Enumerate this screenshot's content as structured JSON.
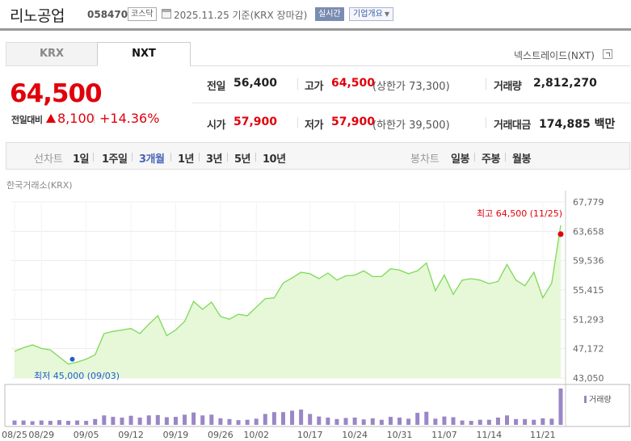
{
  "header": {
    "company_name": "리노공업",
    "stock_code": "058470",
    "market_badge": "코스닥",
    "date_text": "2025.11.25  기준(KRX 장마감)",
    "realtime_badge": "실시간",
    "company_info_button": "기업개요"
  },
  "tabs": {
    "krx": "KRX",
    "nxt": "NXT",
    "nxt_label": "넥스트레이드(NXT)"
  },
  "price": {
    "current": "64,500",
    "change_label": "전일대비",
    "change_value": "8,100",
    "change_pct": "+14.36%"
  },
  "quote": {
    "prev_label": "전일",
    "prev_value": "56,400",
    "high_label": "고가",
    "high_value": "64,500",
    "upper_limit": "(상한가 73,300)",
    "volume_label": "거래량",
    "volume_value": "2,812,270",
    "open_label": "시가",
    "open_value": "57,900",
    "low_label": "저가",
    "low_value": "57,900",
    "lower_limit": "(하한가 39,500)",
    "amount_label": "거래대금",
    "amount_value": "174,885 백만"
  },
  "period_bar": {
    "line_label": "선차트",
    "periods": [
      "1일",
      "1주일",
      "3개월",
      "1년",
      "3년",
      "5년",
      "10년"
    ],
    "active_period": "3개월",
    "candle_label": "봉차트",
    "candles": [
      "일봉",
      "주봉",
      "월봉"
    ]
  },
  "source_label": "한국거래소(KRX)",
  "colors": {
    "up": "#e0000b",
    "line": "#7ed957",
    "area": "#e6f8d8",
    "volume_bar": "#9b86c6",
    "active_tab": "#4a64b8",
    "low_marker": "#1e5ecf"
  },
  "chart_data": {
    "type": "line",
    "y_ticks": [
      "67,779",
      "63,658",
      "59,536",
      "55,415",
      "51,293",
      "47,172",
      "43,050"
    ],
    "ylim": [
      43050,
      67779
    ],
    "x_tick_labels": [
      "08/25",
      "08/29",
      "09/05",
      "09/12",
      "09/19",
      "09/26",
      "10/02",
      "10/17",
      "10/24",
      "10/31",
      "11/07",
      "11/14",
      "11/21"
    ],
    "high_annotation": "최고 64,500 (11/25)",
    "low_annotation": "최저 45,000 (09/03)",
    "high_index": 61,
    "low_index": 6,
    "volume_label": "거래량",
    "values": [
      46800,
      47300,
      47700,
      47200,
      47000,
      46000,
      45000,
      45300,
      45700,
      46300,
      49300,
      49600,
      49800,
      50000,
      49300,
      50600,
      51800,
      49000,
      49800,
      51000,
      53800,
      52700,
      53700,
      51700,
      51300,
      52000,
      51800,
      53000,
      54200,
      54300,
      56400,
      57100,
      57900,
      57700,
      57000,
      57800,
      56800,
      57400,
      57500,
      58100,
      57300,
      57300,
      58400,
      58200,
      57700,
      58100,
      59200,
      55300,
      57500,
      54800,
      56800,
      57000,
      56800,
      56300,
      56600,
      59000,
      56800,
      56000,
      57900,
      54300,
      56400,
      64500
    ],
    "volumes": [
      0.12,
      0.12,
      0.1,
      0.12,
      0.11,
      0.13,
      0.11,
      0.12,
      0.11,
      0.16,
      0.26,
      0.22,
      0.2,
      0.25,
      0.2,
      0.26,
      0.27,
      0.21,
      0.22,
      0.28,
      0.34,
      0.26,
      0.28,
      0.18,
      0.16,
      0.13,
      0.14,
      0.17,
      0.3,
      0.35,
      0.35,
      0.39,
      0.42,
      0.3,
      0.23,
      0.2,
      0.16,
      0.19,
      0.2,
      0.15,
      0.18,
      0.14,
      0.22,
      0.2,
      0.17,
      0.33,
      0.36,
      0.17,
      0.23,
      0.21,
      0.12,
      0.11,
      0.14,
      0.14,
      0.2,
      0.26,
      0.16,
      0.16,
      0.14,
      0.18,
      0.17,
      1.0
    ]
  }
}
